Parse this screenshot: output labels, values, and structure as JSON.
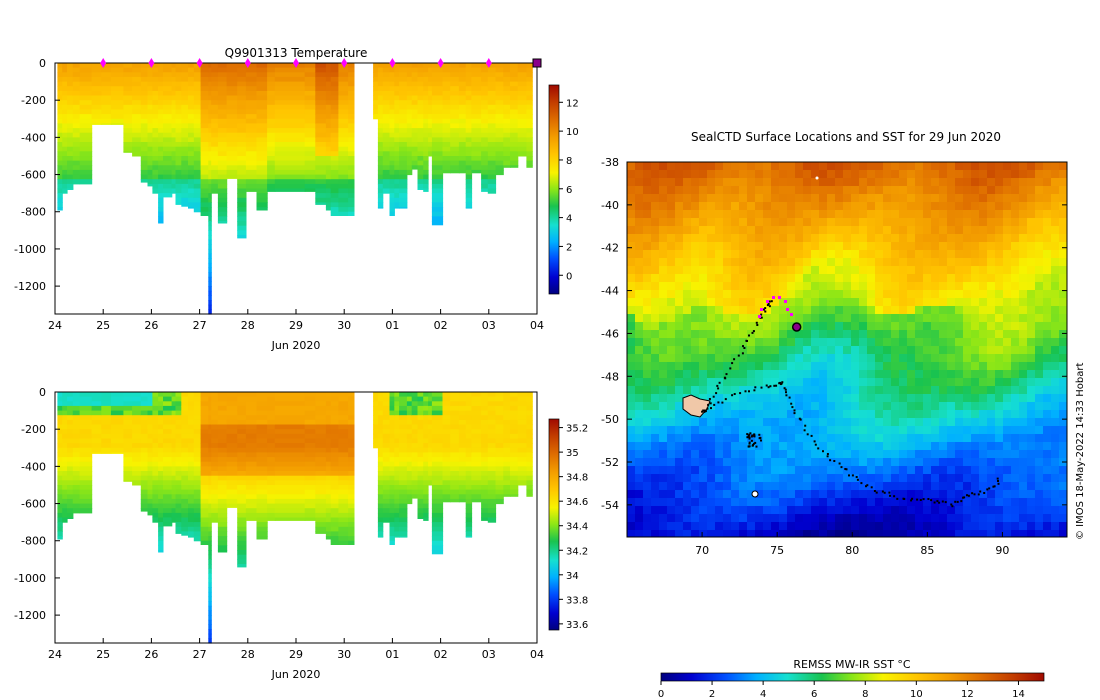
{
  "chart_data": [
    {
      "type": "heatmap",
      "name": "temperature-section",
      "title": "Q9901313  Temperature",
      "xlabel": "Jun 2020",
      "ylabel": "",
      "xticks": [
        "24",
        "25",
        "26",
        "27",
        "28",
        "29",
        "30",
        "01",
        "02",
        "03",
        "04"
      ],
      "yticks": [
        "0",
        "-200",
        "-400",
        "-600",
        "-800",
        "-1000",
        "-1200"
      ],
      "yticks_values": [
        0,
        -200,
        -400,
        -600,
        -800,
        -1000,
        -1200
      ],
      "ylim": [
        -1350,
        0
      ],
      "colorbar": {
        "ticks": [
          "0",
          "2",
          "4",
          "6",
          "8",
          "10",
          "12"
        ],
        "values": [
          0,
          2,
          4,
          6,
          8,
          10,
          12
        ],
        "range": [
          -1.3,
          13.2
        ]
      },
      "profile_markers_day": [
        25,
        26,
        27,
        28,
        29,
        30,
        31,
        32,
        33
      ],
      "current_marker_day": 34
    },
    {
      "type": "heatmap",
      "name": "salinity-section",
      "title": "",
      "xlabel": "Jun 2020",
      "ylabel": "",
      "xticks": [
        "24",
        "25",
        "26",
        "27",
        "28",
        "29",
        "30",
        "01",
        "02",
        "03",
        "04"
      ],
      "yticks": [
        "0",
        "-200",
        "-400",
        "-600",
        "-800",
        "-1000",
        "-1200"
      ],
      "yticks_values": [
        0,
        -200,
        -400,
        -600,
        -800,
        -1000,
        -1200
      ],
      "ylim": [
        -1350,
        0
      ],
      "colorbar": {
        "ticks": [
          "33.6",
          "33.8",
          "34",
          "34.2",
          "34.4",
          "34.6",
          "34.8",
          "35",
          "35.2"
        ],
        "values": [
          33.6,
          33.8,
          34.0,
          34.2,
          34.4,
          34.6,
          34.8,
          35.0,
          35.2
        ],
        "range": [
          33.55,
          35.27
        ]
      }
    },
    {
      "type": "heatmap",
      "name": "sst-map",
      "title": "SealCTD Surface Locations and SST for 29 Jun 2020",
      "xticks": [
        "70",
        "75",
        "80",
        "85",
        "90"
      ],
      "xticks_values": [
        70,
        75,
        80,
        85,
        90
      ],
      "yticks": [
        "-38",
        "-40",
        "-42",
        "-44",
        "-46",
        "-48",
        "-50",
        "-52",
        "-54"
      ],
      "yticks_values": [
        -38,
        -40,
        -42,
        -44,
        -46,
        -48,
        -50,
        -52,
        -54
      ],
      "xlim": [
        65.0,
        94.3
      ],
      "ylim": [
        -55.5,
        -38
      ],
      "colorbar_label": "REMSS MW-IR SST °C",
      "colorbar": {
        "ticks": [
          "0",
          "2",
          "4",
          "6",
          "8",
          "10",
          "12",
          "14"
        ],
        "values": [
          0,
          2,
          4,
          6,
          8,
          10,
          12,
          14
        ],
        "range": [
          0,
          15
        ]
      },
      "current_location": {
        "lon": 76.3,
        "lat": -45.7
      },
      "credit": "© IMOS 18-May-2022 14:33 Hobart"
    }
  ],
  "colors": {
    "palette": [
      "#00007f",
      "#0000d0",
      "#0050ff",
      "#00b0ff",
      "#16e0d0",
      "#19c34f",
      "#8be617",
      "#f8f300",
      "#ffc400",
      "#f39d00",
      "#df6f00",
      "#c23c00",
      "#a00a00"
    ],
    "marker": "#ff00ff",
    "current": "#8a008a"
  }
}
